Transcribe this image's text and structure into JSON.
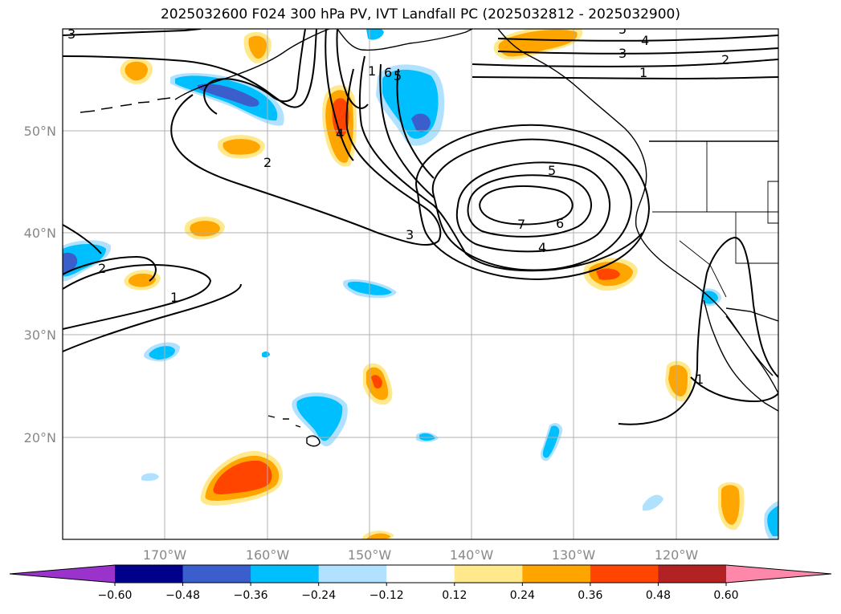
{
  "title": "2025032600 F024 300 hPa PV, IVT Landfall PC (2025032812 - 2025032900)",
  "axes": {
    "lon_labels": [
      "170°W",
      "160°W",
      "150°W",
      "140°W",
      "130°W",
      "120°W"
    ],
    "lat_labels": [
      "50°N",
      "40°N",
      "30°N",
      "20°N"
    ]
  },
  "colorbar": {
    "ticks": [
      "−0.60",
      "−0.48",
      "−0.36",
      "−0.24",
      "−0.12",
      "0.12",
      "0.24",
      "0.36",
      "0.48",
      "0.60"
    ],
    "colors": [
      "#9933cc",
      "#00008b",
      "#3a5fcd",
      "#00bfff",
      "#b0e2ff",
      "#ffffff",
      "#ffe98c",
      "#ffa500",
      "#ff4500",
      "#b22222",
      "#ff88aa"
    ]
  },
  "contour_labels": [
    "3",
    "4",
    "5",
    "3",
    "2",
    "1",
    "6",
    "5",
    "2",
    "5",
    "6",
    "7",
    "4",
    "3",
    "2",
    "1",
    "4",
    "1",
    "1"
  ],
  "colors": {
    "gridline": "#b0b0b0",
    "contour": "#000000",
    "coast": "#000000"
  }
}
